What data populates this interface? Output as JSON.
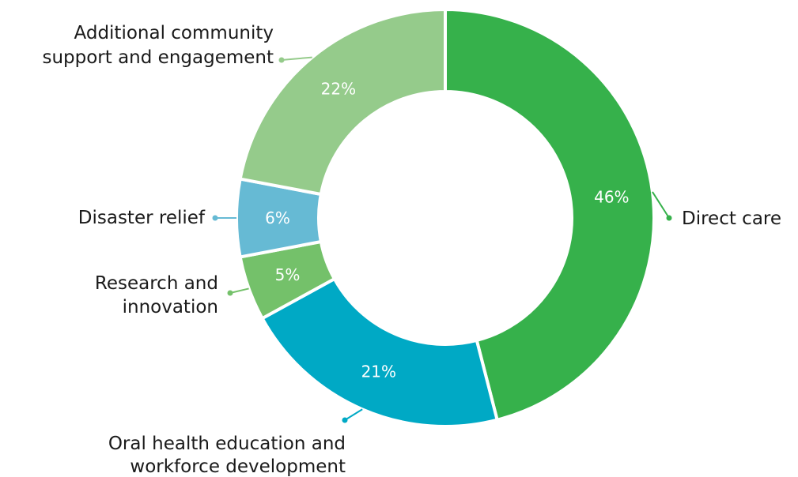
{
  "chart_data": {
    "type": "pie",
    "variant": "donut",
    "title": "",
    "slices": [
      {
        "label": "Direct care",
        "value": 46,
        "value_label": "46%",
        "color": "#36b14b"
      },
      {
        "label": "Oral health education and workforce development",
        "value": 21,
        "value_label": "21%",
        "color": "#00a9c5"
      },
      {
        "label": "Research and innovation",
        "value": 5,
        "value_label": "5%",
        "color": "#74c16a"
      },
      {
        "label": "Disaster relief",
        "value": 6,
        "value_label": "6%",
        "color": "#66bad4"
      },
      {
        "label": "Additional community support and engagement",
        "value": 22,
        "value_label": "22%",
        "color": "#95cb8b"
      }
    ],
    "legend": "none",
    "start_angle": "12 o'clock",
    "direction": "clockwise"
  }
}
